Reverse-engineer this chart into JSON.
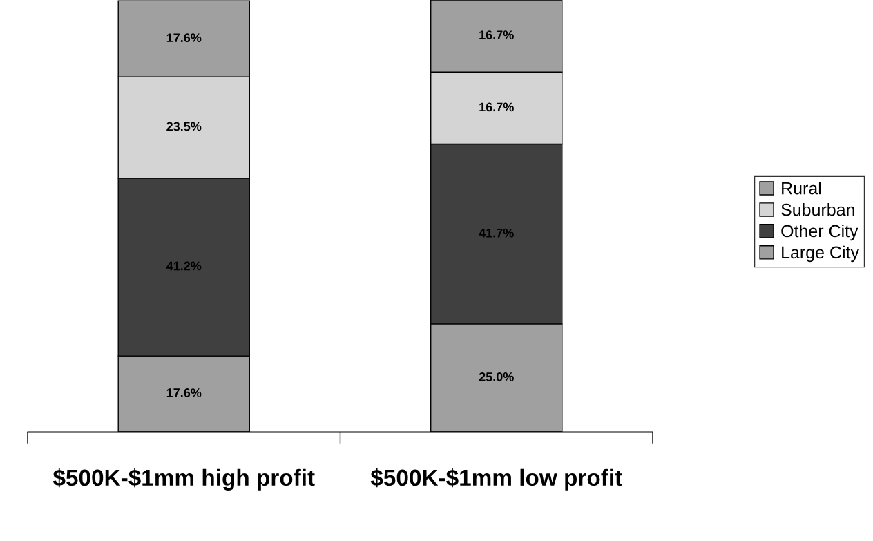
{
  "chart_data": {
    "type": "bar",
    "stacked": true,
    "legend": "right",
    "categories": [
      "$500K-$1mm high profit",
      "$500K-$1mm low profit"
    ],
    "series": [
      {
        "name": "Large City",
        "color": "#a0a0a0",
        "values": [
          17.6,
          25.0
        ],
        "value_labels": [
          "17.6%",
          "25.0%"
        ]
      },
      {
        "name": "Other City",
        "color": "#404040",
        "values": [
          41.2,
          41.7
        ],
        "value_labels": [
          "41.2%",
          "41.7%"
        ]
      },
      {
        "name": "Suburban",
        "color": "#d4d4d4",
        "values": [
          23.5,
          16.7
        ],
        "value_labels": [
          "23.5%",
          "16.7%"
        ]
      },
      {
        "name": "Rural",
        "color": "#a0a0a0",
        "values": [
          17.6,
          16.7
        ],
        "value_labels": [
          "17.6%",
          "16.7%"
        ]
      }
    ]
  }
}
